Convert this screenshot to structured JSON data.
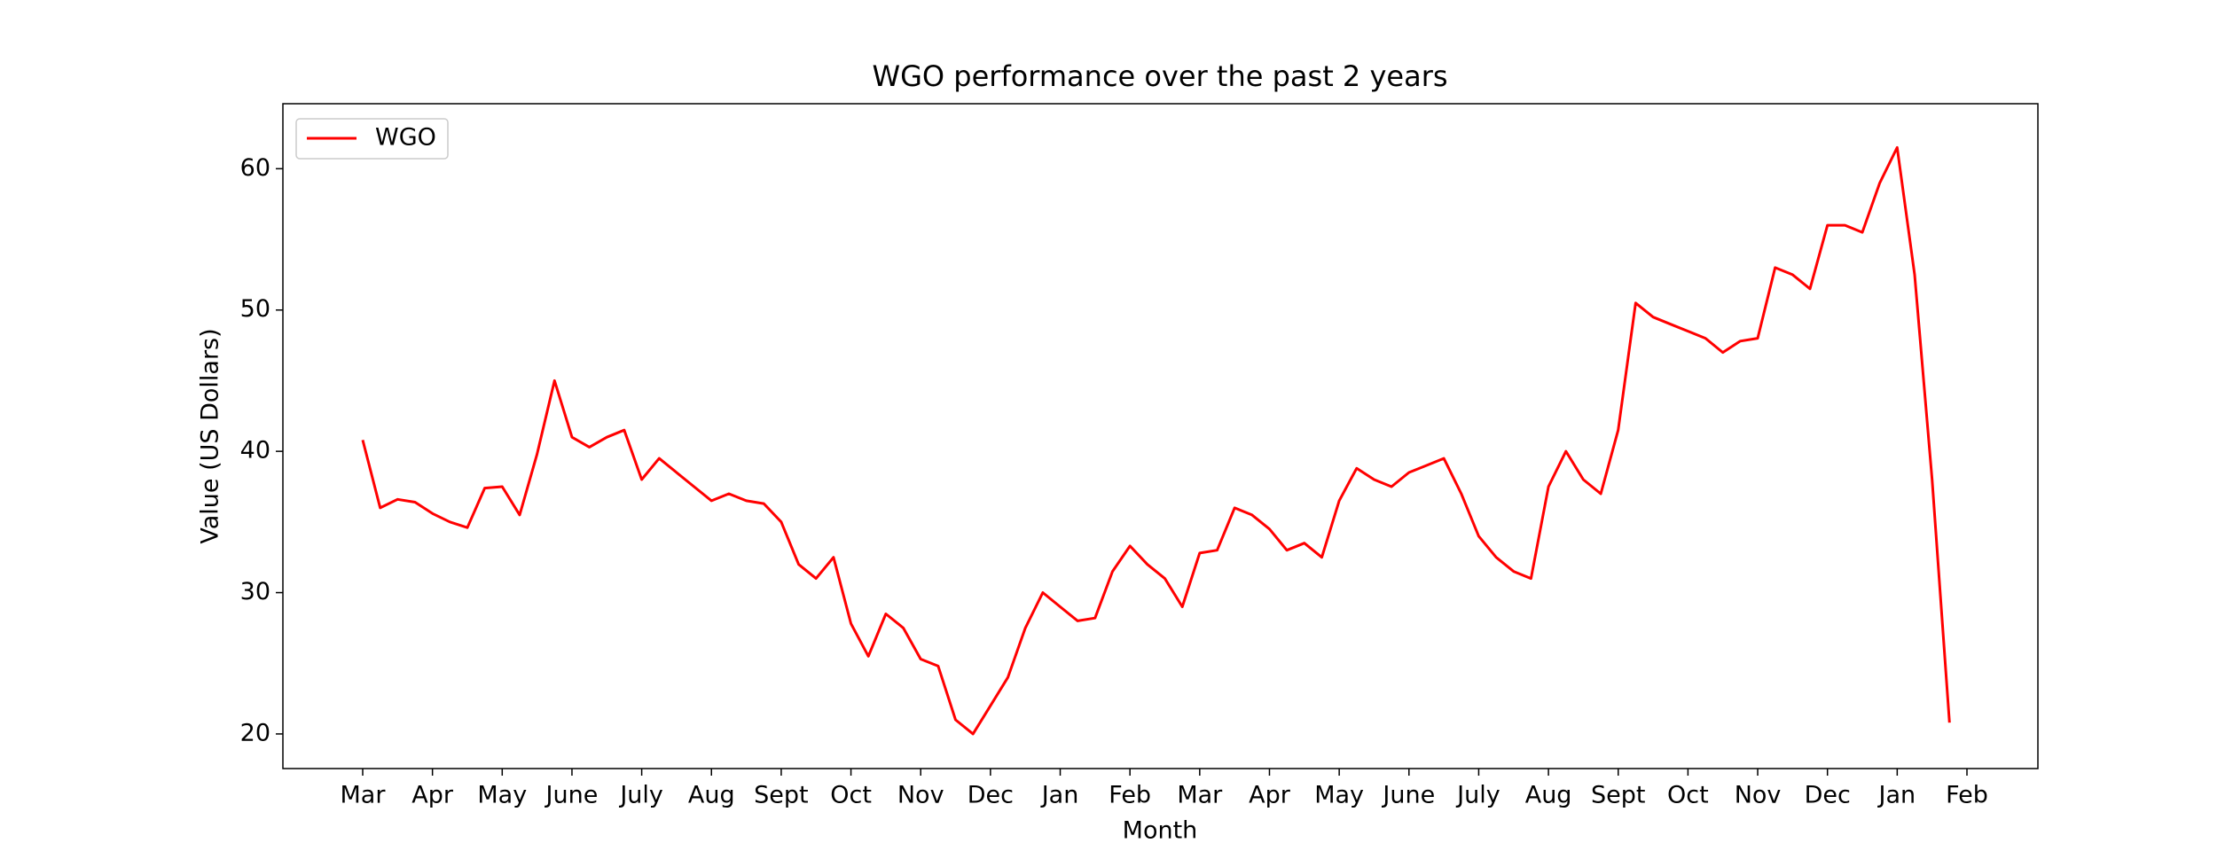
{
  "chart_data": {
    "type": "line",
    "title": "WGO performance over the past 2 years",
    "x_label": "Month",
    "y_label": "Value (US Dollars)",
    "categories": [
      "Mar",
      null,
      null,
      null,
      "Apr",
      null,
      null,
      null,
      "May",
      null,
      null,
      null,
      "June",
      null,
      null,
      null,
      "July",
      null,
      null,
      null,
      "Aug",
      null,
      null,
      null,
      "Sept",
      null,
      null,
      null,
      "Oct",
      null,
      null,
      null,
      "Nov",
      null,
      null,
      null,
      "Dec",
      null,
      null,
      null,
      "Jan",
      null,
      null,
      null,
      "Feb",
      null,
      null,
      null,
      "Mar",
      null,
      null,
      null,
      "Apr",
      null,
      null,
      null,
      "May",
      null,
      null,
      null,
      "June",
      null,
      null,
      null,
      "July",
      null,
      null,
      null,
      "Aug",
      null,
      null,
      null,
      "Sept",
      null,
      null,
      null,
      "Oct",
      null,
      null,
      null,
      "Nov",
      null,
      null,
      null,
      "Dec",
      null,
      null,
      null,
      "Jan",
      null,
      null,
      null,
      "Feb"
    ],
    "series": [
      {
        "name": "WGO",
        "color": "#ff0000",
        "values": [
          40.8,
          36.0,
          36.6,
          36.4,
          35.6,
          35.0,
          34.6,
          37.4,
          37.5,
          35.5,
          39.8,
          45.0,
          41.0,
          40.3,
          41.0,
          41.5,
          38.0,
          39.5,
          38.5,
          37.5,
          36.5,
          37.0,
          36.5,
          36.3,
          35.0,
          32.0,
          31.0,
          32.5,
          27.8,
          25.5,
          28.5,
          27.5,
          25.3,
          24.8,
          21.0,
          20.0,
          22.0,
          24.0,
          27.5,
          30.0,
          29.0,
          28.0,
          28.2,
          31.5,
          33.3,
          32.0,
          31.0,
          29.0,
          32.8,
          33.0,
          36.0,
          35.5,
          34.5,
          33.0,
          33.5,
          32.5,
          36.5,
          38.8,
          38.0,
          37.5,
          38.5,
          39.0,
          39.5,
          37.0,
          34.0,
          32.5,
          31.5,
          31.0,
          37.5,
          40.0,
          38.0,
          37.0,
          41.5,
          50.5,
          49.5,
          49.0,
          48.5,
          48.0,
          47.0,
          47.8,
          48.0,
          53.0,
          52.5,
          51.5,
          56.0,
          56.0,
          55.5,
          59.0,
          61.5,
          52.5,
          38.0,
          20.8,
          null
        ]
      }
    ],
    "ylim": [
      17.55,
      64.6
    ],
    "yticks": [
      20,
      30,
      40,
      50,
      60
    ],
    "legend": "upper left"
  }
}
